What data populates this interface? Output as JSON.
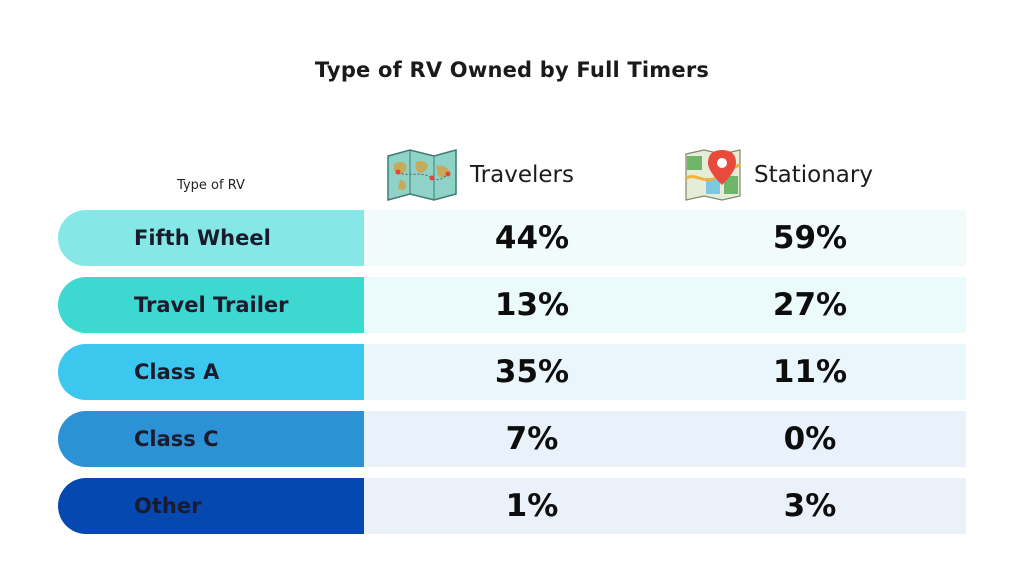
{
  "chart_data": {
    "type": "table",
    "title": "Type of RV Owned by Full Timers",
    "row_header": "Type of RV",
    "columns": [
      {
        "name": "Travelers",
        "icon": "world-map-icon"
      },
      {
        "name": "Stationary",
        "icon": "map-pin-icon"
      }
    ],
    "rows": [
      {
        "label": "Fifth Wheel",
        "travelers": "44%",
        "stationary": "59%",
        "label_color": "#86e8e6",
        "cell_color": "#f1fbfb"
      },
      {
        "label": "Travel Trailer",
        "travelers": "13%",
        "stationary": "27%",
        "label_color": "#3dd9d1",
        "cell_color": "#ebfafa"
      },
      {
        "label": "Class A",
        "travelers": "35%",
        "stationary": "11%",
        "label_color": "#3cc8ee",
        "cell_color": "#e9f7fc"
      },
      {
        "label": "Class C",
        "travelers": "7%",
        "stationary": "0%",
        "label_color": "#2c92d6",
        "cell_color": "#e9f2fa"
      },
      {
        "label": "Other",
        "travelers": "1%",
        "stationary": "3%",
        "label_color": "#0548b0",
        "cell_color": "#eaf1f9"
      }
    ]
  }
}
